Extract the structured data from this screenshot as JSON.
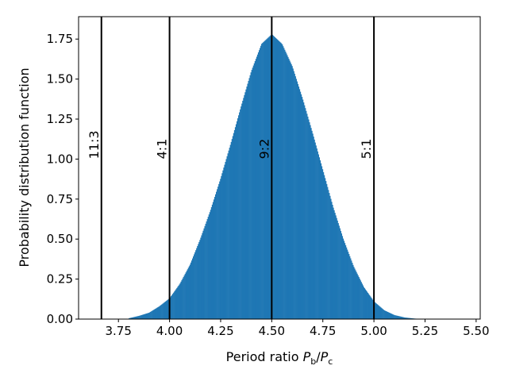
{
  "chart_data": {
    "type": "bar",
    "subtype": "histogram",
    "title": "",
    "xlabel_prefix": "Period ratio ",
    "xlabel_math_var1": "P",
    "xlabel_math_sub1": "b",
    "xlabel_math_slash": "/",
    "xlabel_math_var2": "P",
    "xlabel_math_sub2": "c",
    "ylabel": "Probability distribution function",
    "xlim": [
      3.555,
      5.52
    ],
    "ylim": [
      0.0,
      1.89
    ],
    "xticks": [
      3.75,
      4.0,
      4.25,
      4.5,
      4.75,
      5.0,
      5.25,
      5.5
    ],
    "xtick_labels": [
      "3.75",
      "4.00",
      "4.25",
      "4.50",
      "4.75",
      "5.00",
      "5.25",
      "5.50"
    ],
    "yticks": [
      0.0,
      0.25,
      0.5,
      0.75,
      1.0,
      1.25,
      1.5,
      1.75
    ],
    "ytick_labels": [
      "0.00",
      "0.25",
      "0.50",
      "0.75",
      "1.00",
      "1.25",
      "1.50",
      "1.75"
    ],
    "bar_color": "#1f77b4",
    "distribution": {
      "shape": "approximately gaussian",
      "center": 4.49,
      "peak_density": 1.78,
      "support": [
        3.8,
        5.25
      ]
    },
    "histogram_density": [
      {
        "x": 3.8,
        "y": 0.005
      },
      {
        "x": 3.85,
        "y": 0.02
      },
      {
        "x": 3.9,
        "y": 0.04
      },
      {
        "x": 3.95,
        "y": 0.08
      },
      {
        "x": 4.0,
        "y": 0.13
      },
      {
        "x": 4.05,
        "y": 0.22
      },
      {
        "x": 4.1,
        "y": 0.34
      },
      {
        "x": 4.15,
        "y": 0.5
      },
      {
        "x": 4.2,
        "y": 0.68
      },
      {
        "x": 4.25,
        "y": 0.88
      },
      {
        "x": 4.3,
        "y": 1.1
      },
      {
        "x": 4.35,
        "y": 1.33
      },
      {
        "x": 4.4,
        "y": 1.55
      },
      {
        "x": 4.45,
        "y": 1.72
      },
      {
        "x": 4.5,
        "y": 1.78
      },
      {
        "x": 4.55,
        "y": 1.72
      },
      {
        "x": 4.6,
        "y": 1.58
      },
      {
        "x": 4.65,
        "y": 1.38
      },
      {
        "x": 4.7,
        "y": 1.16
      },
      {
        "x": 4.75,
        "y": 0.93
      },
      {
        "x": 4.8,
        "y": 0.7
      },
      {
        "x": 4.85,
        "y": 0.5
      },
      {
        "x": 4.9,
        "y": 0.33
      },
      {
        "x": 4.95,
        "y": 0.2
      },
      {
        "x": 5.0,
        "y": 0.11
      },
      {
        "x": 5.05,
        "y": 0.055
      },
      {
        "x": 5.1,
        "y": 0.025
      },
      {
        "x": 5.15,
        "y": 0.01
      },
      {
        "x": 5.2,
        "y": 0.003
      },
      {
        "x": 5.25,
        "y": 0.0
      }
    ],
    "resonances": [
      {
        "label": "11:3",
        "x": 3.6667
      },
      {
        "label": "4:1",
        "x": 4.0
      },
      {
        "label": "9:2",
        "x": 4.5
      },
      {
        "label": "5:1",
        "x": 5.0
      }
    ],
    "resonance_label_y": 1.0,
    "grid": false,
    "legend": "none"
  }
}
